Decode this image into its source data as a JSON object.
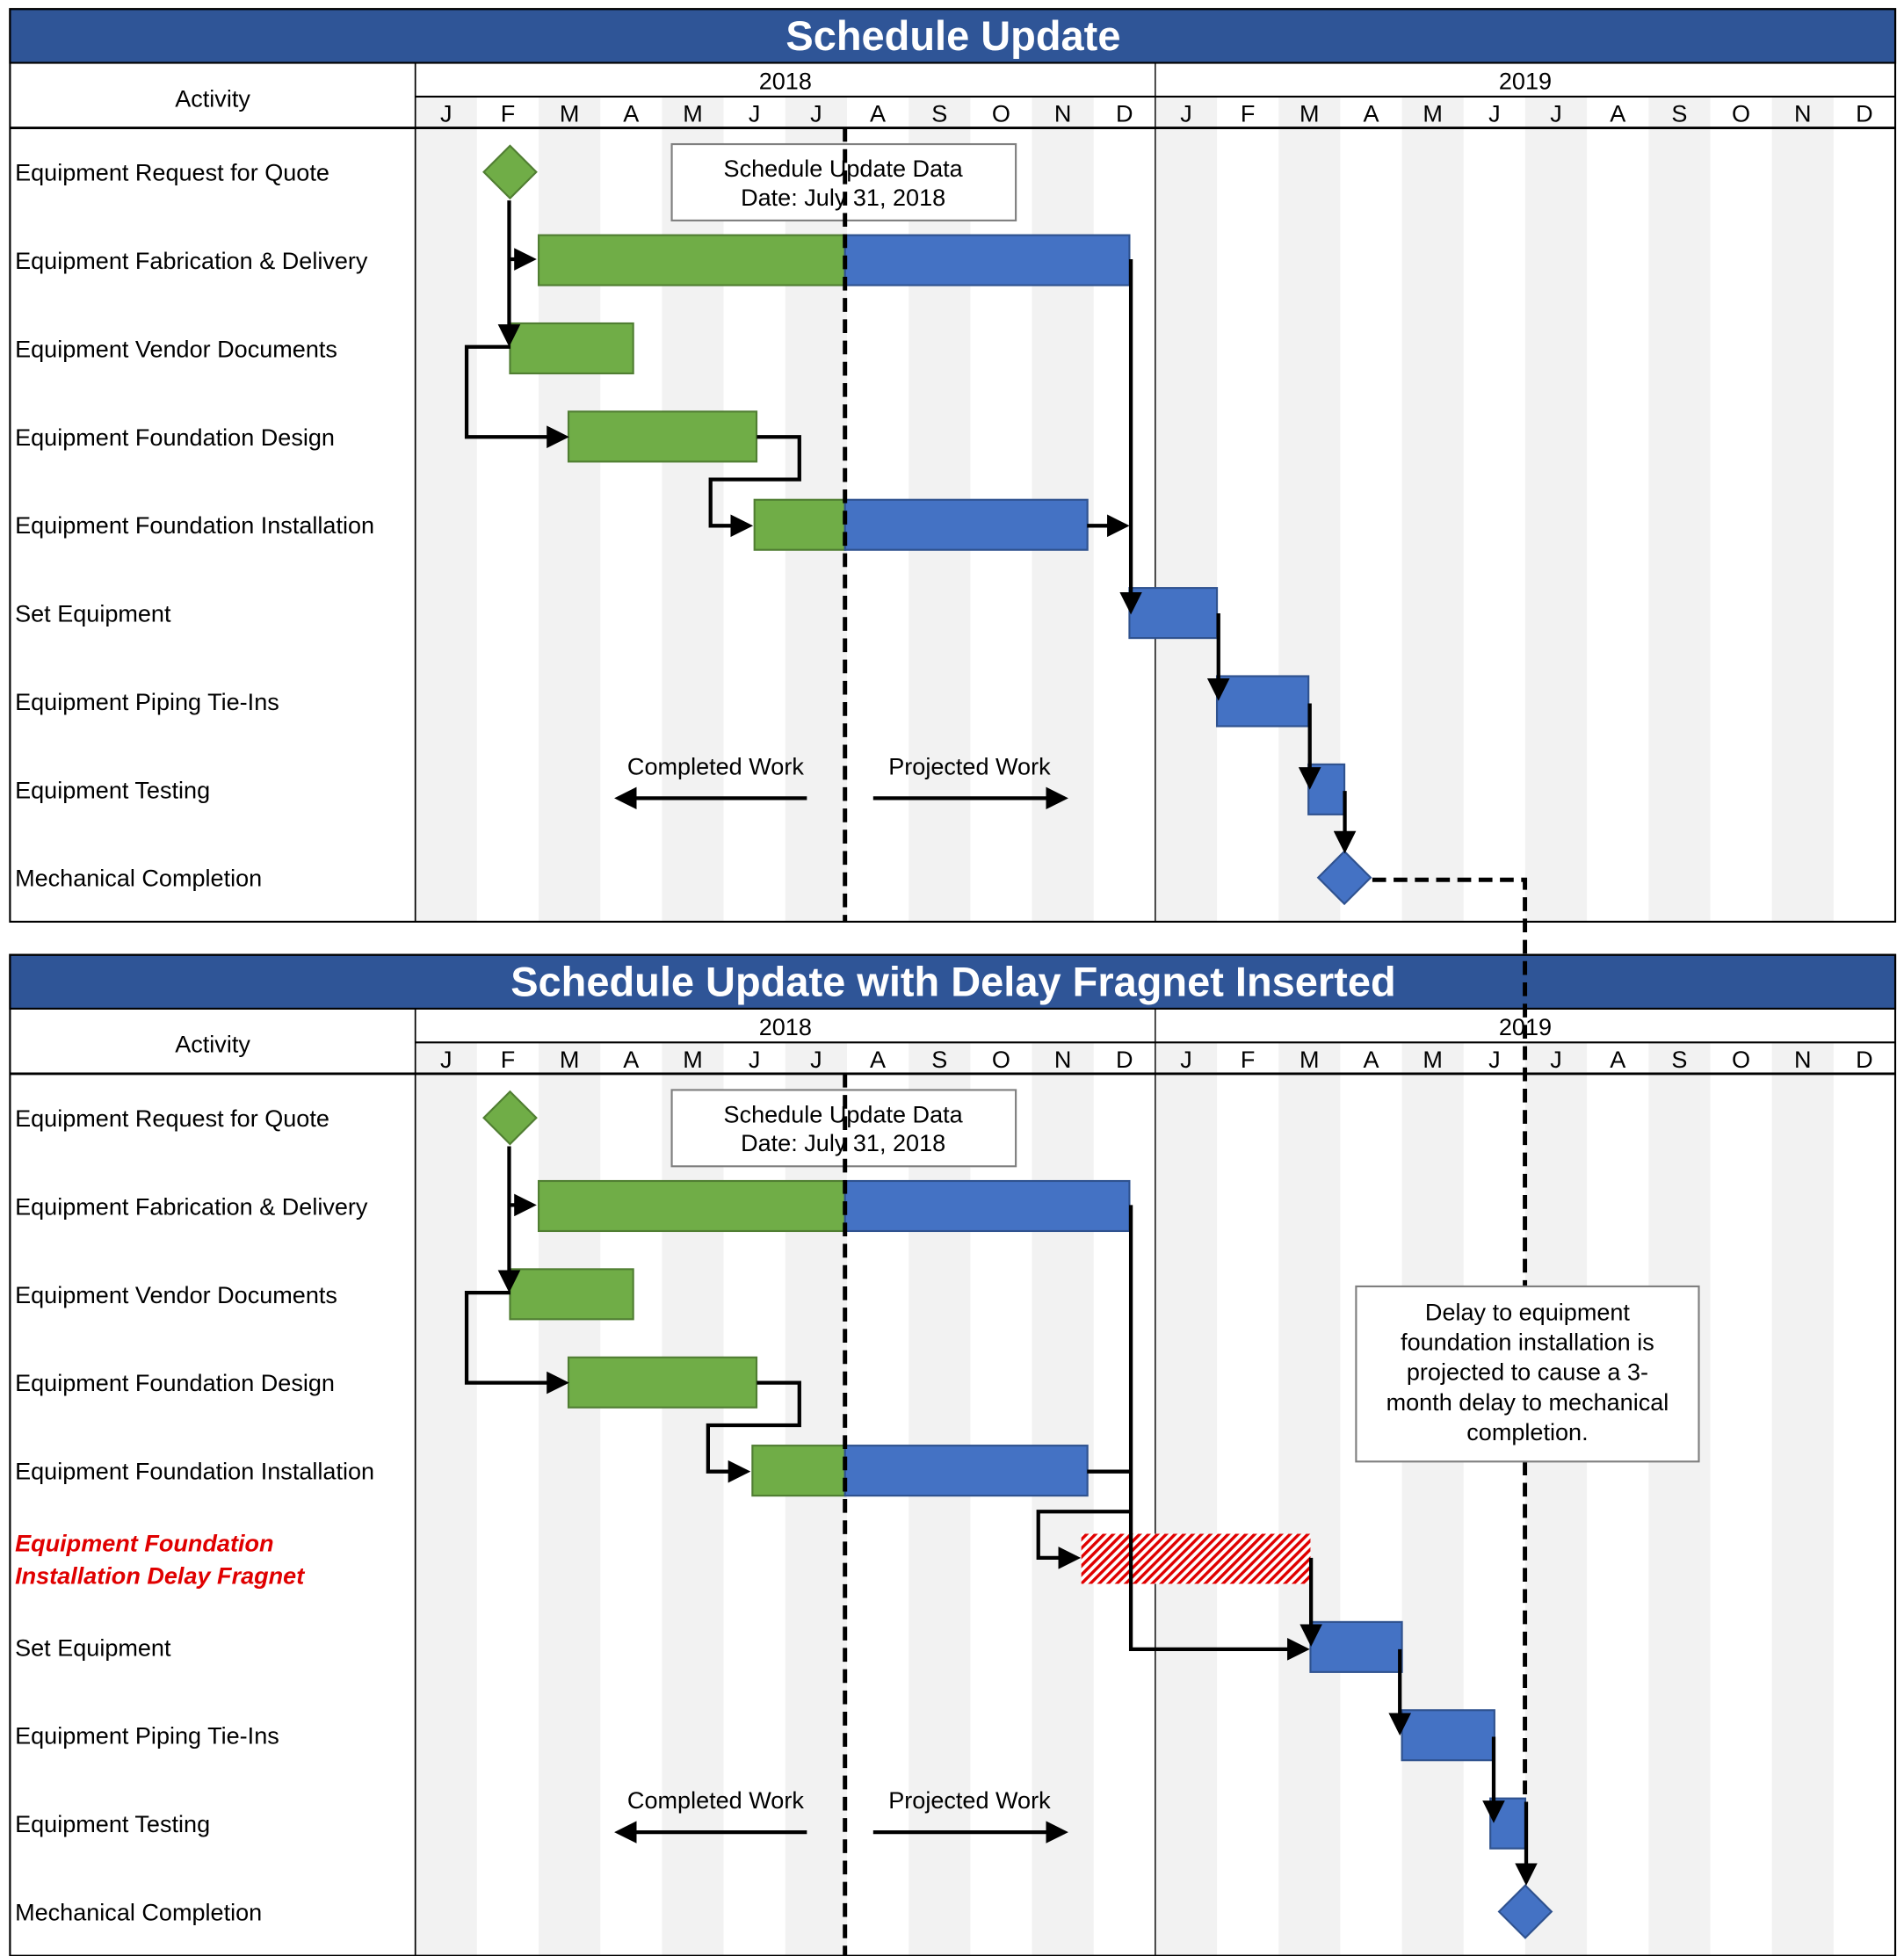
{
  "colors": {
    "header_bar": "#2f5597",
    "completed": "#70ad47",
    "projected": "#4472c4",
    "delay_hatch": "#e00000",
    "stripe": "#f2f2f2",
    "fragnet_label": "#e00000"
  },
  "months": [
    "J",
    "F",
    "M",
    "A",
    "M",
    "J",
    "J",
    "A",
    "S",
    "O",
    "N",
    "D"
  ],
  "charts": [
    {
      "title": "Schedule Update",
      "activity_header": "Activity",
      "years": [
        "2018",
        "2019"
      ],
      "status_box": [
        "Schedule Update Data",
        "Date: July 31, 2018"
      ],
      "status_date": "2018-07-31",
      "legend": {
        "completed": "Completed Work",
        "projected": "Projected Work"
      },
      "activities": [
        {
          "name": [
            "Equipment Request for Quote"
          ],
          "type": "milestone",
          "date": "2018-02-16"
        },
        {
          "name": [
            "Equipment Fabrication & Delivery"
          ],
          "type": "bar",
          "start": "2018-03-01",
          "finish": "2018-12-19"
        },
        {
          "name": [
            "Equipment Vendor Documents"
          ],
          "type": "bar",
          "start": "2018-02-16",
          "finish": "2018-04-17"
        },
        {
          "name": [
            "Equipment Foundation Design"
          ],
          "type": "bar",
          "start": "2018-03-16",
          "finish": "2018-06-17"
        },
        {
          "name": [
            "Equipment Foundation Installation"
          ],
          "type": "bar",
          "start": "2018-06-16",
          "finish": "2018-11-28"
        },
        {
          "name": [
            "Set Equipment"
          ],
          "type": "bar",
          "start": "2018-12-19",
          "finish": "2019-02-01"
        },
        {
          "name": [
            "Equipment Piping Tie-Ins"
          ],
          "type": "bar",
          "start": "2019-02-01",
          "finish": "2019-03-16"
        },
        {
          "name": [
            "Equipment Testing"
          ],
          "type": "bar",
          "start": "2019-03-16",
          "finish": "2019-04-03"
        },
        {
          "name": [
            "Mechanical Completion"
          ],
          "type": "milestone",
          "date": "2019-04-03"
        }
      ]
    },
    {
      "title": "Schedule Update with Delay Fragnet Inserted",
      "activity_header": "Activity",
      "years": [
        "2018",
        "2019"
      ],
      "status_box": [
        "Schedule Update Data",
        "Date: July 31, 2018"
      ],
      "status_date": "2018-07-31",
      "legend": {
        "completed": "Completed Work",
        "projected": "Projected Work"
      },
      "callout": [
        "Delay to equipment",
        "foundation installation is",
        "projected to cause a 3-",
        "month delay to mechanical",
        "completion."
      ],
      "activities": [
        {
          "name": [
            "Equipment Request for Quote"
          ],
          "type": "milestone",
          "date": "2018-02-16"
        },
        {
          "name": [
            "Equipment Fabrication & Delivery"
          ],
          "type": "bar",
          "start": "2018-03-01",
          "finish": "2018-12-19"
        },
        {
          "name": [
            "Equipment Vendor Documents"
          ],
          "type": "bar",
          "start": "2018-02-16",
          "finish": "2018-04-17"
        },
        {
          "name": [
            "Equipment Foundation Design"
          ],
          "type": "bar",
          "start": "2018-03-16",
          "finish": "2018-06-17"
        },
        {
          "name": [
            "Equipment Foundation Installation"
          ],
          "type": "bar",
          "start": "2018-06-15",
          "finish": "2018-11-28"
        },
        {
          "name": [
            "Equipment Foundation",
            "Installation Delay Fragnet"
          ],
          "type": "fragnet",
          "start": "2018-11-25",
          "finish": "2019-03-17"
        },
        {
          "name": [
            "Set Equipment"
          ],
          "type": "bar",
          "start": "2019-03-17",
          "finish": "2019-05-01"
        },
        {
          "name": [
            "Equipment Piping Tie-Ins"
          ],
          "type": "bar",
          "start": "2019-05-01",
          "finish": "2019-06-16"
        },
        {
          "name": [
            "Equipment Testing"
          ],
          "type": "bar",
          "start": "2019-06-14",
          "finish": "2019-07-01"
        },
        {
          "name": [
            "Mechanical Completion"
          ],
          "type": "milestone",
          "date": "2019-07-01"
        }
      ]
    }
  ]
}
